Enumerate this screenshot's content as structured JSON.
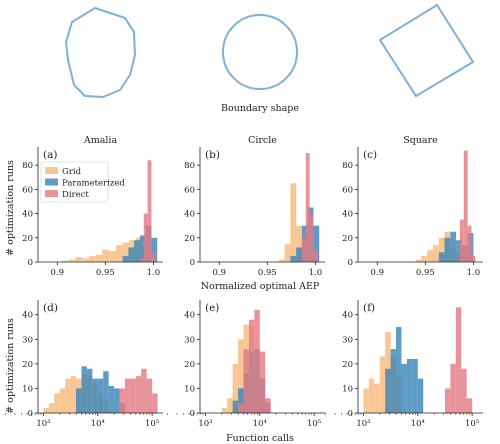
{
  "figure": {
    "shapes_label": "Boundary shape",
    "row1_xlabel": "Normalized optimal AEP",
    "row2_xlabel": "Function calls",
    "ylabel": "# optimization runs",
    "colors": {
      "grid": "#f8b97c",
      "parameterized": "#3b86b8",
      "direct": "#e27b82",
      "shape_stroke": "#7fb0d6"
    },
    "legend": [
      "Grid",
      "Parameterized",
      "Direct"
    ]
  },
  "chart_data": [
    {
      "type": "bar",
      "panel": "(a)",
      "title": "Amalia",
      "x_range": [
        0.88,
        1.01
      ],
      "ylim": [
        0,
        95
      ],
      "xticks": [
        {
          "v": 0.9,
          "label": "0.9"
        },
        {
          "v": 0.95,
          "label": "0.95"
        },
        {
          "v": 1.0,
          "label": "1.0"
        }
      ],
      "yticks": [
        0,
        20,
        40,
        60,
        80
      ],
      "series": [
        {
          "name": "Grid",
          "bins": [
            [
              0.905,
              0.912,
              1
            ],
            [
              0.912,
              0.919,
              2
            ],
            [
              0.919,
              0.926,
              4
            ],
            [
              0.926,
              0.933,
              3
            ],
            [
              0.933,
              0.94,
              5
            ],
            [
              0.94,
              0.947,
              6
            ],
            [
              0.947,
              0.954,
              10
            ],
            [
              0.954,
              0.961,
              9
            ],
            [
              0.961,
              0.968,
              14
            ],
            [
              0.968,
              0.975,
              16
            ],
            [
              0.975,
              0.982,
              18
            ],
            [
              0.982,
              0.989,
              20
            ],
            [
              0.989,
              0.996,
              12
            ]
          ]
        },
        {
          "name": "Parameterized",
          "bins": [
            [
              0.968,
              0.974,
              5
            ],
            [
              0.974,
              0.98,
              12
            ],
            [
              0.98,
              0.986,
              18
            ],
            [
              0.986,
              0.992,
              22
            ],
            [
              0.992,
              0.998,
              30
            ],
            [
              0.998,
              1.004,
              20
            ]
          ]
        },
        {
          "name": "Direct",
          "bins": [
            [
              0.986,
              0.99,
              3
            ],
            [
              0.99,
              0.994,
              40
            ],
            [
              0.994,
              0.998,
              84
            ],
            [
              0.998,
              1.002,
              8
            ]
          ]
        }
      ]
    },
    {
      "type": "bar",
      "panel": "(b)",
      "title": "Circle",
      "x_range": [
        0.88,
        1.01
      ],
      "ylim": [
        0,
        95
      ],
      "xticks": [
        {
          "v": 0.9,
          "label": "0.9"
        },
        {
          "v": 0.95,
          "label": "0.95"
        },
        {
          "v": 1.0,
          "label": "1.0"
        }
      ],
      "yticks": [
        0,
        20,
        40,
        60,
        80
      ],
      "series": [
        {
          "name": "Grid",
          "bins": [
            [
              0.962,
              0.968,
              2
            ],
            [
              0.968,
              0.974,
              15
            ],
            [
              0.974,
              0.98,
              65
            ],
            [
              0.98,
              0.986,
              30
            ],
            [
              0.986,
              0.992,
              20
            ],
            [
              0.992,
              0.998,
              5
            ]
          ]
        },
        {
          "name": "Parameterized",
          "bins": [
            [
              0.974,
              0.98,
              5
            ],
            [
              0.98,
              0.986,
              12
            ],
            [
              0.986,
              0.992,
              30
            ],
            [
              0.992,
              0.998,
              45
            ],
            [
              0.998,
              1.004,
              30
            ]
          ]
        },
        {
          "name": "Direct",
          "bins": [
            [
              0.986,
              0.99,
              20
            ],
            [
              0.99,
              0.994,
              90
            ],
            [
              0.994,
              0.998,
              40
            ],
            [
              0.998,
              1.002,
              10
            ]
          ]
        }
      ]
    },
    {
      "type": "bar",
      "panel": "(c)",
      "title": "Square",
      "x_range": [
        0.88,
        1.01
      ],
      "ylim": [
        0,
        95
      ],
      "xticks": [
        {
          "v": 0.9,
          "label": "0.9"
        },
        {
          "v": 0.95,
          "label": "0.95"
        },
        {
          "v": 1.0,
          "label": "1.0"
        }
      ],
      "yticks": [
        0,
        20,
        40,
        60,
        80
      ],
      "series": [
        {
          "name": "Grid",
          "bins": [
            [
              0.94,
              0.946,
              2
            ],
            [
              0.946,
              0.952,
              5
            ],
            [
              0.952,
              0.958,
              10
            ],
            [
              0.958,
              0.964,
              14
            ],
            [
              0.964,
              0.97,
              20
            ],
            [
              0.97,
              0.976,
              25
            ],
            [
              0.976,
              0.982,
              12
            ],
            [
              0.982,
              0.988,
              8
            ]
          ]
        },
        {
          "name": "Parameterized",
          "bins": [
            [
              0.964,
              0.97,
              8
            ],
            [
              0.97,
              0.976,
              20
            ],
            [
              0.976,
              0.982,
              25
            ],
            [
              0.982,
              0.988,
              18
            ],
            [
              0.988,
              0.994,
              14
            ],
            [
              0.994,
              1.0,
              24
            ]
          ]
        },
        {
          "name": "Direct",
          "bins": [
            [
              0.986,
              0.99,
              35
            ],
            [
              0.99,
              0.994,
              92
            ],
            [
              0.994,
              0.998,
              30
            ],
            [
              0.998,
              1.002,
              5
            ]
          ]
        }
      ]
    },
    {
      "type": "bar",
      "panel": "(d)",
      "log_x": true,
      "x_range": [
        2.9,
        5.2
      ],
      "ylim": [
        0,
        46
      ],
      "xticks": [
        {
          "v": 3,
          "label": "10³"
        },
        {
          "v": 4,
          "label": "10⁴"
        },
        {
          "v": 5,
          "label": "10⁵"
        }
      ],
      "yticks": [
        0,
        10,
        20,
        30,
        40
      ],
      "series": [
        {
          "name": "Grid",
          "bins": [
            [
              3.0,
              3.1,
              2
            ],
            [
              3.1,
              3.2,
              4
            ],
            [
              3.2,
              3.3,
              8
            ],
            [
              3.3,
              3.4,
              10
            ],
            [
              3.4,
              3.5,
              14
            ],
            [
              3.5,
              3.6,
              15
            ],
            [
              3.6,
              3.7,
              14
            ],
            [
              3.7,
              3.8,
              16
            ],
            [
              3.8,
              3.9,
              15
            ],
            [
              3.9,
              4.0,
              12
            ],
            [
              4.0,
              4.1,
              8
            ],
            [
              4.1,
              4.2,
              5
            ]
          ]
        },
        {
          "name": "Parameterized",
          "bins": [
            [
              3.6,
              3.7,
              10
            ],
            [
              3.7,
              3.8,
              19
            ],
            [
              3.8,
              3.9,
              18
            ],
            [
              3.9,
              4.0,
              14
            ],
            [
              4.0,
              4.1,
              14
            ],
            [
              4.1,
              4.2,
              17
            ],
            [
              4.2,
              4.3,
              11
            ],
            [
              4.3,
              4.4,
              10
            ],
            [
              4.4,
              4.5,
              4
            ]
          ]
        },
        {
          "name": "Direct",
          "bins": [
            [
              4.4,
              4.5,
              10
            ],
            [
              4.5,
              4.6,
              14
            ],
            [
              4.6,
              4.7,
              14
            ],
            [
              4.7,
              4.8,
              15
            ],
            [
              4.8,
              4.9,
              18
            ],
            [
              4.9,
              5.0,
              14
            ],
            [
              5.0,
              5.1,
              8
            ]
          ]
        }
      ]
    },
    {
      "type": "bar",
      "panel": "(e)",
      "log_x": true,
      "x_range": [
        2.9,
        5.2
      ],
      "ylim": [
        0,
        46
      ],
      "xticks": [
        {
          "v": 3,
          "label": "10³"
        },
        {
          "v": 4,
          "label": "10⁴"
        },
        {
          "v": 5,
          "label": "10⁵"
        }
      ],
      "yticks": [
        0,
        10,
        20,
        30,
        40
      ],
      "series": [
        {
          "name": "Grid",
          "bins": [
            [
              3.3,
              3.4,
              2
            ],
            [
              3.4,
              3.5,
              6
            ],
            [
              3.5,
              3.6,
              20
            ],
            [
              3.6,
              3.7,
              30
            ],
            [
              3.7,
              3.8,
              36
            ],
            [
              3.8,
              3.9,
              35
            ],
            [
              3.9,
              4.0,
              12
            ],
            [
              4.0,
              4.1,
              4
            ]
          ]
        },
        {
          "name": "Parameterized",
          "bins": [
            [
              3.5,
              3.6,
              5
            ],
            [
              3.6,
              3.7,
              10
            ],
            [
              3.7,
              3.8,
              16
            ],
            [
              3.8,
              3.9,
              25
            ],
            [
              3.9,
              4.0,
              26
            ],
            [
              4.0,
              4.1,
              14
            ],
            [
              4.1,
              4.2,
              4
            ]
          ]
        },
        {
          "name": "Direct",
          "bins": [
            [
              3.6,
              3.7,
              4
            ],
            [
              3.7,
              3.8,
              26
            ],
            [
              3.8,
              3.9,
              38
            ],
            [
              3.9,
              4.0,
              42
            ],
            [
              4.0,
              4.1,
              25
            ],
            [
              4.1,
              4.2,
              6
            ]
          ]
        }
      ]
    },
    {
      "type": "bar",
      "panel": "(f)",
      "log_x": true,
      "x_range": [
        2.9,
        5.2
      ],
      "ylim": [
        0,
        46
      ],
      "xticks": [
        {
          "v": 3,
          "label": "10³"
        },
        {
          "v": 4,
          "label": "10⁴"
        },
        {
          "v": 5,
          "label": "10⁵"
        }
      ],
      "yticks": [
        0,
        10,
        20,
        30,
        40
      ],
      "series": [
        {
          "name": "Grid",
          "bins": [
            [
              3.0,
              3.1,
              10
            ],
            [
              3.1,
              3.2,
              14
            ],
            [
              3.2,
              3.3,
              12
            ],
            [
              3.3,
              3.4,
              23
            ],
            [
              3.4,
              3.5,
              33
            ],
            [
              3.5,
              3.6,
              23
            ],
            [
              3.6,
              3.7,
              15
            ]
          ]
        },
        {
          "name": "Parameterized",
          "bins": [
            [
              3.4,
              3.5,
              18
            ],
            [
              3.5,
              3.6,
              26
            ],
            [
              3.6,
              3.7,
              35
            ],
            [
              3.7,
              3.8,
              20
            ],
            [
              3.8,
              3.9,
              22
            ],
            [
              3.9,
              4.0,
              22
            ],
            [
              4.0,
              4.1,
              14
            ]
          ]
        },
        {
          "name": "Direct",
          "bins": [
            [
              4.5,
              4.6,
              10
            ],
            [
              4.6,
              4.7,
              20
            ],
            [
              4.7,
              4.8,
              43
            ],
            [
              4.8,
              4.9,
              18
            ],
            [
              4.9,
              5.0,
              6
            ]
          ]
        }
      ]
    }
  ]
}
